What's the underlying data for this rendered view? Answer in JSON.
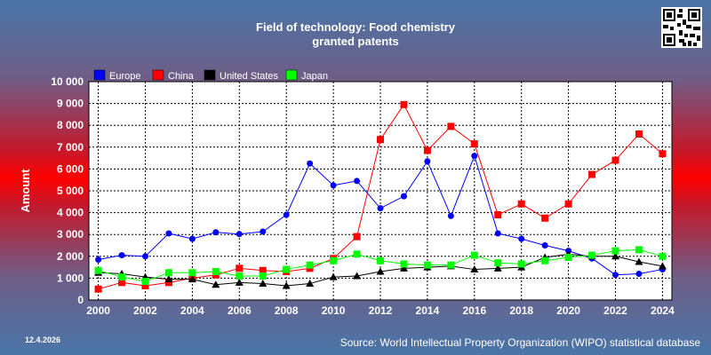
{
  "header": {
    "title_line1": "Field of technology: Food chemistry",
    "title_line2": "granted patents"
  },
  "footer": {
    "date": "12.4.2026",
    "source": "Source: World Intellectual Property Organization (WIPO) statistical database"
  },
  "qr_icon": "qr-code-icon",
  "chart_data": {
    "type": "line",
    "title": "Field of technology: Food chemistry granted patents",
    "ylabel": "Amount",
    "xlabel": "",
    "ylim": [
      0,
      10000
    ],
    "yticks": [
      0,
      1000,
      2000,
      3000,
      4000,
      5000,
      6000,
      7000,
      8000,
      9000,
      10000
    ],
    "ytick_labels": [
      "0",
      "1 000",
      "2 000",
      "3 000",
      "4 000",
      "5 000",
      "6 000",
      "7 000",
      "8 000",
      "9 000",
      "10 000"
    ],
    "x": [
      2000,
      2001,
      2002,
      2003,
      2004,
      2005,
      2006,
      2007,
      2008,
      2009,
      2010,
      2011,
      2012,
      2013,
      2014,
      2015,
      2016,
      2017,
      2018,
      2019,
      2020,
      2021,
      2022,
      2023,
      2024
    ],
    "xticks": [
      2000,
      2002,
      2004,
      2006,
      2008,
      2010,
      2012,
      2014,
      2016,
      2018,
      2020,
      2022,
      2024
    ],
    "xtick_labels": [
      "2000",
      "2002",
      "2004",
      "2006",
      "2008",
      "2010",
      "2012",
      "2014",
      "2016",
      "2018",
      "2020",
      "2022",
      "2024"
    ],
    "grid": true,
    "legend_position": "top-left",
    "series": [
      {
        "name": "Europe",
        "color": "#0000ff",
        "marker": "circle",
        "values": [
          1850,
          2050,
          2000,
          3050,
          2800,
          3100,
          3020,
          3130,
          3900,
          6250,
          5250,
          5450,
          4200,
          4750,
          6350,
          3850,
          6600,
          3050,
          2800,
          2500,
          2250,
          1900,
          1150,
          1200,
          1400
        ]
      },
      {
        "name": "China",
        "color": "#ff0000",
        "marker": "square",
        "values": [
          500,
          800,
          650,
          800,
          1000,
          1150,
          1450,
          1350,
          1300,
          1450,
          1900,
          2900,
          7350,
          8950,
          6850,
          7950,
          7150,
          3900,
          4400,
          3750,
          4400,
          5750,
          6400,
          7600,
          6700
        ]
      },
      {
        "name": "United States",
        "color": "#000000",
        "marker": "triangle",
        "values": [
          1250,
          1200,
          1050,
          950,
          950,
          700,
          800,
          750,
          650,
          750,
          1050,
          1100,
          1300,
          1450,
          1500,
          1550,
          1400,
          1450,
          1500,
          1950,
          2100,
          2000,
          2000,
          1750,
          1550
        ]
      },
      {
        "name": "Japan",
        "color": "#00ff00",
        "marker": "square",
        "values": [
          1350,
          1050,
          850,
          1250,
          1250,
          1300,
          1100,
          1100,
          1400,
          1600,
          1800,
          2100,
          1800,
          1650,
          1600,
          1600,
          2050,
          1700,
          1650,
          1800,
          1950,
          2050,
          2250,
          2300,
          2000
        ]
      }
    ]
  }
}
